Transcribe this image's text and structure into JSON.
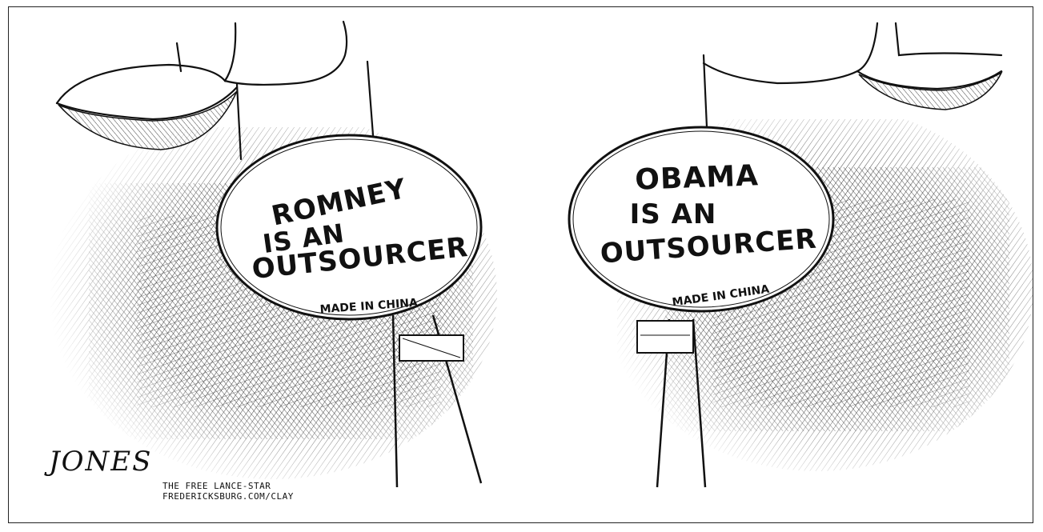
{
  "left_sign": {
    "line1": "ROMNEY",
    "line2": "IS AN",
    "line3": "OUTSOURCER",
    "tag": "MADE IN CHINA"
  },
  "right_sign": {
    "line1": "OBAMA",
    "line2": "IS AN",
    "line3": "OUTSOURCER",
    "tag": "MADE IN CHINA"
  },
  "signature": "JONES",
  "credit": {
    "publication": "THE FREE LANCE-STAR",
    "url": "FREDERICKSBURG.COM/CLAY"
  },
  "colors": {
    "ink": "#111111",
    "paper": "#ffffff"
  }
}
